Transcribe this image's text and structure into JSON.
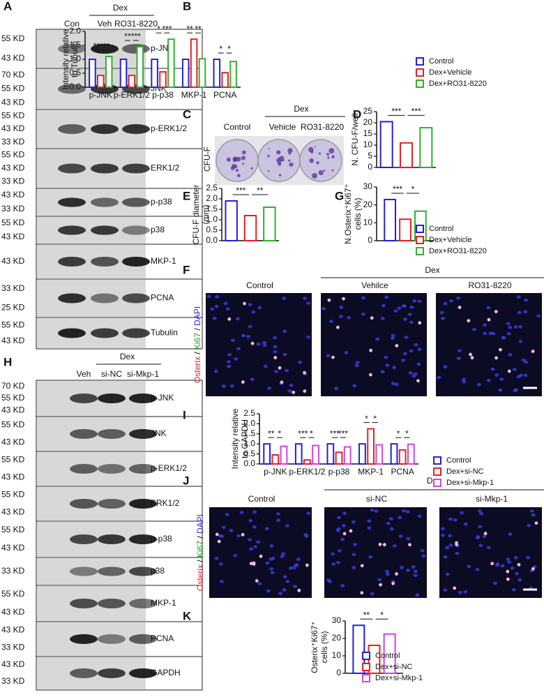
{
  "figure": {
    "blots": [
      {
        "letter": "A",
        "header": "Dex",
        "lanes": [
          "Con",
          "Veh",
          "RO31-8220"
        ],
        "rows": [
          {
            "name": "p-JNK",
            "markers": [
              "55 KD",
              "43 KD"
            ]
          },
          {
            "name": "JNK",
            "markers": [
              "70 KD",
              "55 KD",
              "43 KD"
            ]
          },
          {
            "name": "p-ERK1/2",
            "markers": [
              "55 KD",
              "43 KD",
              "33 KD"
            ]
          },
          {
            "name": "ERK1/2",
            "markers": [
              "55 KD",
              "43 KD",
              "33 KD"
            ]
          },
          {
            "name": "p-p38",
            "markers": [
              "43 KD",
              "33 KD"
            ]
          },
          {
            "name": "p38",
            "markers": [
              "55 KD",
              "43 KD"
            ]
          },
          {
            "name": "MKP-1",
            "markers": [
              "43 KD"
            ]
          },
          {
            "name": "PCNA",
            "markers": [
              "33 KD",
              "25 KD"
            ]
          },
          {
            "name": "Tubulin",
            "markers": [
              "55 KD",
              "43 KD"
            ]
          }
        ]
      },
      {
        "letter": "H",
        "header": "Dex",
        "lanes": [
          "Veh",
          "si-NC",
          "si-Mkp-1"
        ],
        "rows": [
          {
            "name": "p-JNK",
            "markers": [
              "70 KD",
              "55 KD",
              "43 KD"
            ]
          },
          {
            "name": "JNK",
            "markers": [
              "55 KD",
              "43 KD"
            ]
          },
          {
            "name": "p-ERK1/2",
            "markers": [
              "55 KD",
              "43 KD"
            ]
          },
          {
            "name": "ERK1/2",
            "markers": [
              "55 KD",
              "43 KD"
            ]
          },
          {
            "name": "p-p38",
            "markers": [
              "55 KD",
              "43 KD"
            ]
          },
          {
            "name": "p38",
            "markers": [
              "33 KD"
            ]
          },
          {
            "name": "MKP-1",
            "markers": [
              "55 KD",
              "43 KD"
            ]
          },
          {
            "name": "PCNA",
            "markers": [
              "43 KD",
              "33 KD"
            ]
          },
          {
            "name": "GAPDH",
            "markers": [
              "43 KD",
              "33 KD"
            ]
          }
        ]
      }
    ],
    "colony": {
      "letter": "C",
      "label": "CFU-F",
      "header": "Dex",
      "columns": [
        "Control",
        "Vehicle",
        "RO31-8220"
      ]
    },
    "stains": [
      {
        "letter": "F",
        "header": "Dex",
        "columns": [
          "Control",
          "Vehilce",
          "RO31-8220"
        ],
        "label": [
          {
            "text": "Osterix",
            "color": "#e8232a"
          },
          {
            "text": " / ",
            "color": "#111111"
          },
          {
            "text": "Ki67",
            "color": "#1a9a1a"
          },
          {
            "text": " / ",
            "color": "#111111"
          },
          {
            "text": "DAPI",
            "color": "#2a2ae0"
          }
        ]
      },
      {
        "letter": "J",
        "header": "Dex",
        "columns": [
          "Control",
          "si-NC",
          "si-Mkp-1"
        ],
        "label": [
          {
            "text": "Osterix",
            "color": "#e8232a"
          },
          {
            "text": " / ",
            "color": "#111111"
          },
          {
            "text": "Ki67",
            "color": "#1a9a1a"
          },
          {
            "text": " / ",
            "color": "#111111"
          },
          {
            "text": "DAPI",
            "color": "#2a2ae0"
          }
        ]
      }
    ]
  },
  "chart_data": [
    {
      "type": "bar",
      "letter": "B",
      "ylabel": [
        "Intensity relative",
        "to Tubulin"
      ],
      "categories": [
        "p-JNK",
        "p-ERK1/2",
        "p-p38",
        "MKP-1",
        "PCNA"
      ],
      "series": [
        {
          "name": "Control",
          "color": "#2020e0",
          "values": [
            1.0,
            1.0,
            1.0,
            1.0,
            1.0
          ]
        },
        {
          "name": "Dex+Vehicle",
          "color": "#e82020",
          "values": [
            0.42,
            0.42,
            0.55,
            1.72,
            0.52
          ]
        },
        {
          "name": "Dex+RO31-8220",
          "color": "#30b030",
          "values": [
            1.1,
            1.45,
            1.72,
            1.02,
            0.92
          ]
        }
      ],
      "annotations": [
        "**",
        "***",
        "**",
        "***",
        "*",
        "***",
        "**",
        "**",
        "*",
        "*"
      ],
      "ylim": [
        0,
        2
      ],
      "yticks": [
        {
          "value": 0,
          "label": "0.0"
        },
        0.5,
        {
          "value": 1,
          "label": "1.0"
        },
        1.5,
        {
          "value": 2,
          "label": "2.0"
        }
      ],
      "legend": "right"
    },
    {
      "type": "bar",
      "letter": "D",
      "ylabel": [
        "N. CFU-F/well"
      ],
      "values": [
        20.5,
        11,
        17.8
      ],
      "colors": [
        "#2020e0",
        "#e82020",
        "#30b030"
      ],
      "annotations": [
        "***",
        "***"
      ],
      "ylim": [
        0,
        25
      ],
      "yticks": [
        0,
        5,
        10,
        15,
        20,
        25
      ]
    },
    {
      "type": "bar",
      "letter": "E",
      "ylabel": [
        "CFU-F diameter",
        "(mm)"
      ],
      "values": [
        1.9,
        1.2,
        1.6
      ],
      "colors": [
        "#2020e0",
        "#e82020",
        "#30b030"
      ],
      "annotations": [
        "***",
        "**"
      ],
      "ylim": [
        0,
        2.5
      ],
      "yticks": [
        {
          "value": 0,
          "label": "0.0"
        },
        0.5,
        {
          "value": 1,
          "label": "1.0"
        },
        1.5,
        {
          "value": 2,
          "label": "2.0"
        },
        2.5
      ]
    },
    {
      "type": "bar",
      "letter": "G",
      "ylabel": [
        "N.Osterix⁺Ki67⁺",
        "cells (%)"
      ],
      "series": [
        {
          "name": "Control",
          "color": "#2020e0",
          "values": [
            23
          ]
        },
        {
          "name": "Dex+Vehicle",
          "color": "#e82020",
          "values": [
            12
          ]
        },
        {
          "name": "Dex+RO31-8220",
          "color": "#30b030",
          "values": [
            16.5
          ]
        }
      ],
      "annotations": [
        "***",
        "*"
      ],
      "ylim": [
        0,
        30
      ],
      "yticks": [
        0,
        10,
        20,
        30
      ],
      "legend": "right"
    },
    {
      "type": "bar",
      "letter": "I",
      "ylabel": [
        "Intensity relative",
        "to GAPDH"
      ],
      "categories": [
        "p-JNK",
        "p-ERK1/2",
        "p-p38",
        "MKP-1",
        "PCNA"
      ],
      "series": [
        {
          "name": "Control",
          "color": "#2020e0",
          "values": [
            1.0,
            1.0,
            1.0,
            1.0,
            1.0
          ]
        },
        {
          "name": "Dex+si-NC",
          "color": "#e82020",
          "values": [
            0.45,
            0.2,
            0.58,
            1.75,
            0.7
          ]
        },
        {
          "name": "Dex+si-Mkp-1",
          "color": "#cc44ee",
          "values": [
            0.88,
            0.92,
            0.85,
            0.95,
            0.98
          ]
        }
      ],
      "annotations": [
        "**",
        "*",
        "***",
        "*",
        "***",
        "***",
        "*",
        "*",
        "*",
        "*"
      ],
      "ylim": [
        0,
        2.5
      ],
      "yticks": [
        {
          "value": 0,
          "label": "0.0"
        },
        0.5,
        {
          "value": 1,
          "label": "1.0"
        },
        1.5,
        {
          "value": 2,
          "label": "2.0"
        },
        2.5
      ],
      "legend": "right"
    },
    {
      "type": "bar",
      "letter": "K",
      "ylabel": [
        "Osterix⁺Ki67⁺",
        "cells (%)"
      ],
      "series": [
        {
          "name": "Control",
          "color": "#2020e0",
          "values": [
            27.5
          ]
        },
        {
          "name": "Dex+si-NC",
          "color": "#e82020",
          "values": [
            16
          ]
        },
        {
          "name": "Dex+si-Mkp-1",
          "color": "#cc44ee",
          "values": [
            22.5
          ]
        }
      ],
      "annotations": [
        "**",
        "*"
      ],
      "ylim": [
        0,
        30
      ],
      "yticks": [
        0,
        10,
        20,
        30
      ],
      "legend": "below"
    }
  ]
}
